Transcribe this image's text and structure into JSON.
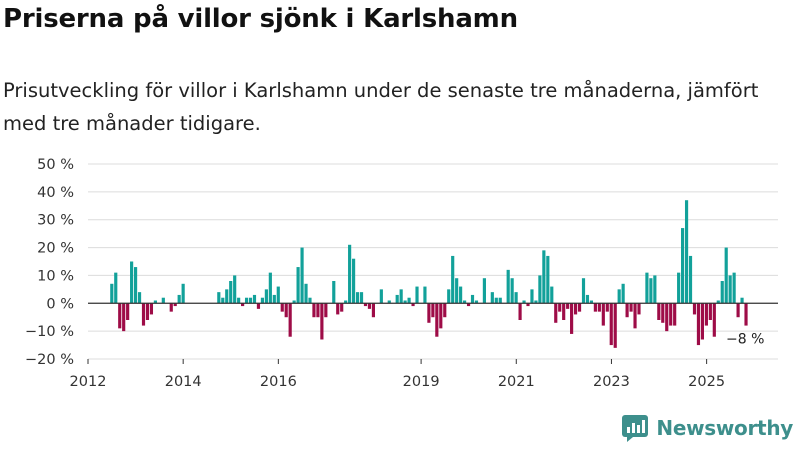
{
  "title": "Priserna på villor sjönk i Karlshamn",
  "subtitle": "Prisutveckling för villor i Karlshamn under de senaste tre månaderna, jämfört med tre månader tidigare.",
  "brand": {
    "name": "Newsworthy",
    "icon": "newsworthy-logo-icon"
  },
  "colors": {
    "positive": "#12a19a",
    "negative": "#9e0c47",
    "grid": "#dcdcdc",
    "zero_line": "#333333"
  },
  "chart_data": {
    "type": "bar",
    "unit": "%",
    "ylim": [
      -20,
      50
    ],
    "yticks": [
      50,
      40,
      30,
      20,
      10,
      0,
      -10,
      -20
    ],
    "ytick_labels": [
      "50 %",
      "40 %",
      "30 %",
      "20 %",
      "10 %",
      "0 %",
      "−10 %",
      "−20 %"
    ],
    "xlim": [
      2012.0,
      2026.5
    ],
    "xticks": [
      2012,
      2014,
      2016,
      2019,
      2021,
      2023,
      2025
    ],
    "xtick_labels": [
      "2012",
      "2014",
      "2016",
      "2019",
      "2021",
      "2023",
      "2025"
    ],
    "start": 2012.5,
    "step": 0.0833,
    "values": [
      7,
      11,
      -9,
      -10,
      -6,
      15,
      13,
      4,
      -8,
      -6,
      -4,
      1,
      0,
      2,
      0,
      -3,
      -1,
      3,
      7,
      0,
      0,
      0,
      0,
      0,
      0,
      0,
      0,
      4,
      2,
      5,
      8,
      10,
      2,
      -1,
      2,
      2,
      3,
      -2,
      2,
      5,
      11,
      3,
      6,
      -3,
      -5,
      -12,
      1,
      13,
      20,
      7,
      2,
      -5,
      -5,
      -13,
      -5,
      0,
      8,
      -4,
      -3,
      1,
      21,
      16,
      4,
      4,
      -1,
      -2,
      -5,
      0,
      5,
      0,
      1,
      0,
      3,
      5,
      1,
      2,
      -1,
      6,
      0,
      6,
      -7,
      -5,
      -12,
      -9,
      -5,
      5,
      17,
      9,
      6,
      1,
      -1,
      3,
      1,
      0,
      9,
      0,
      4,
      2,
      2,
      0,
      12,
      9,
      4,
      -6,
      1,
      -1,
      5,
      1,
      10,
      19,
      17,
      6,
      -7,
      -3,
      -6,
      -2,
      -11,
      -4,
      -3,
      9,
      3,
      1,
      -3,
      -3,
      -8,
      -3,
      -15,
      -16,
      5,
      7,
      -5,
      -3,
      -9,
      -4,
      0,
      11,
      9,
      10,
      -6,
      -7,
      -10,
      -8,
      -8,
      11,
      27,
      37,
      17,
      -4,
      -15,
      -13,
      -8,
      -6,
      -12,
      1,
      8,
      20,
      10,
      11,
      -5,
      2,
      -8
    ],
    "annotations": [
      {
        "label": "−8 %",
        "value": -8,
        "position": "right of last bar"
      }
    ]
  }
}
